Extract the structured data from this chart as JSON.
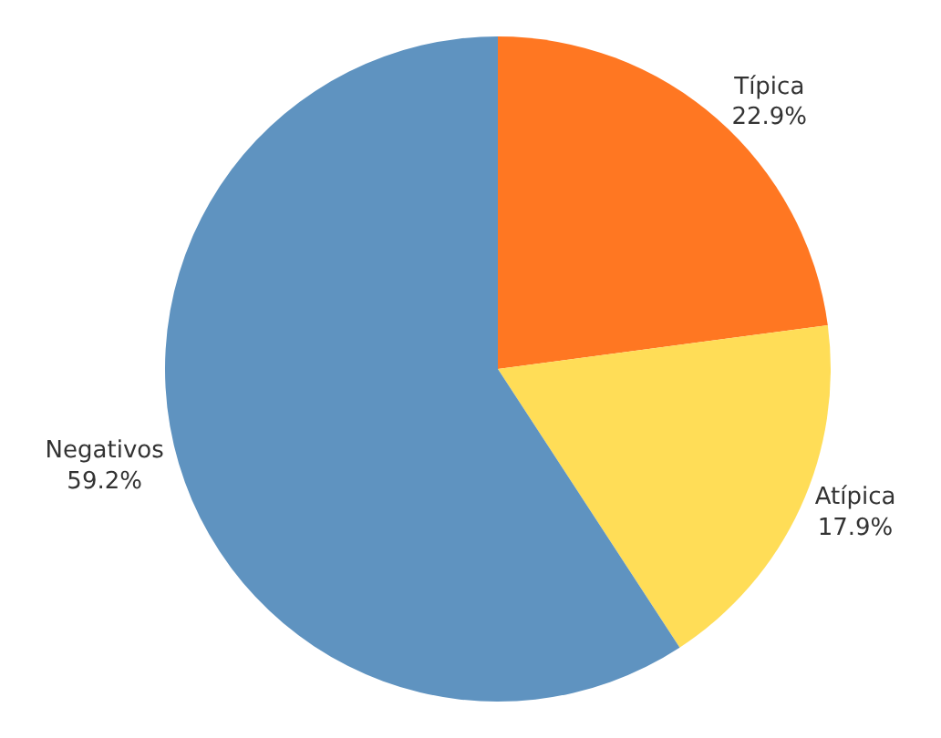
{
  "chart_data": {
    "type": "pie",
    "categories": [
      "Típica",
      "Atípica",
      "Negativos"
    ],
    "values": [
      22.9,
      17.9,
      59.2
    ],
    "value_labels": [
      "22.9%",
      "17.9%",
      "59.2%"
    ],
    "colors": [
      "#ff7722",
      "#ffdd57",
      "#5f93c0"
    ],
    "legend": false
  }
}
